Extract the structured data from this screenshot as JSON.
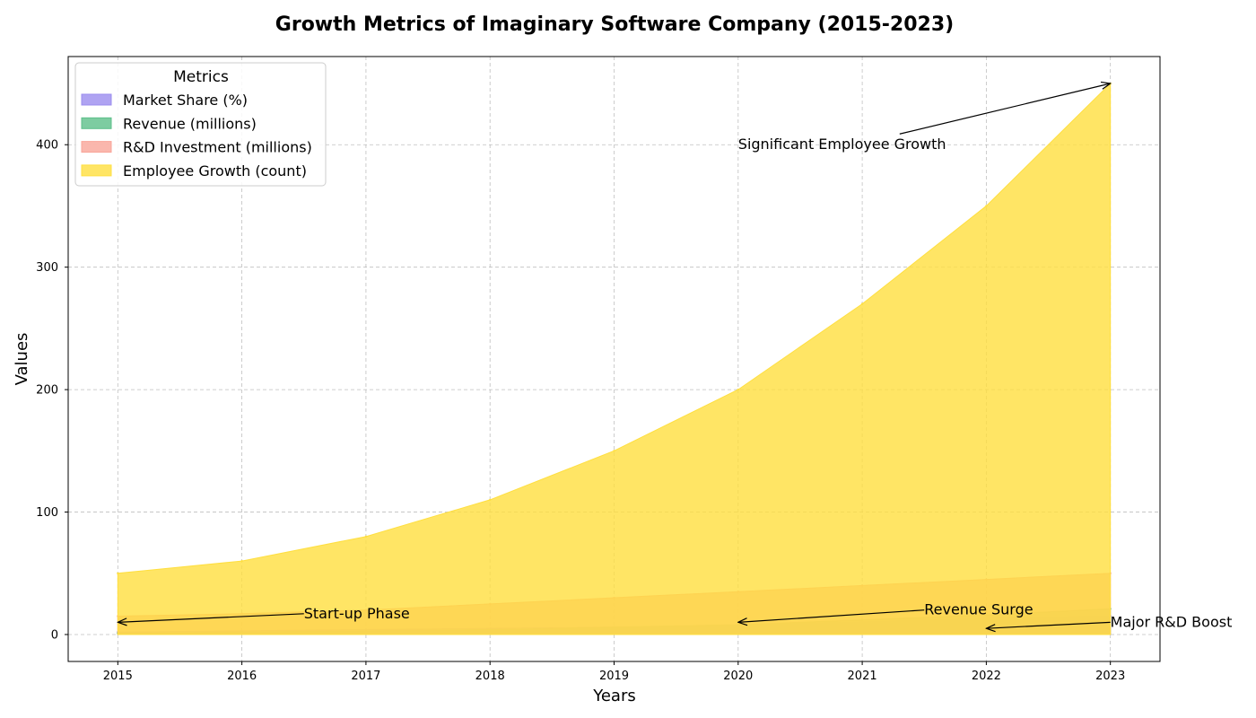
{
  "chart_data": {
    "type": "area",
    "title": "Growth Metrics of Imaginary Software Company (2015-2023)",
    "xlabel": "Years",
    "ylabel": "Values",
    "x": [
      2015,
      2016,
      2017,
      2018,
      2019,
      2020,
      2021,
      2022,
      2023
    ],
    "xlim": [
      2014.6,
      2023.4
    ],
    "ylim": [
      -22,
      472
    ],
    "yticks": [
      0,
      100,
      200,
      300,
      400
    ],
    "grid": true,
    "legend": {
      "title": "Metrics",
      "placement": "top-left"
    },
    "series": [
      {
        "name": "Market Share (%)",
        "color": "#9b8cef",
        "values": [
          2,
          3,
          4,
          5,
          6,
          8,
          10,
          13,
          15
        ]
      },
      {
        "name": "Revenue (millions)",
        "color": "#5dbf8a",
        "values": [
          1,
          2,
          3,
          4,
          6,
          8,
          12,
          16,
          21
        ]
      },
      {
        "name": "R&D Investment (millions)",
        "color": "#f9a599",
        "values": [
          15,
          17,
          20,
          25,
          30,
          35,
          40,
          45,
          50
        ]
      },
      {
        "name": "Employee Growth (count)",
        "color": "#ffdf3f",
        "values": [
          50,
          60,
          80,
          110,
          150,
          200,
          270,
          350,
          450
        ]
      }
    ],
    "annotations": [
      {
        "text": "Start-up Phase",
        "x": 2015,
        "y": 10,
        "text_x": 2016.5,
        "text_y": 17
      },
      {
        "text": "Revenue Surge",
        "x": 2020,
        "y": 10,
        "text_x": 2021.5,
        "text_y": 20
      },
      {
        "text": "Major R&D Boost",
        "x": 2022,
        "y": 5,
        "text_x": 2023,
        "text_y": 10
      },
      {
        "text": "Significant Employee Growth",
        "x": 2023,
        "y": 450,
        "text_x": 2020,
        "text_y": 400
      }
    ]
  }
}
